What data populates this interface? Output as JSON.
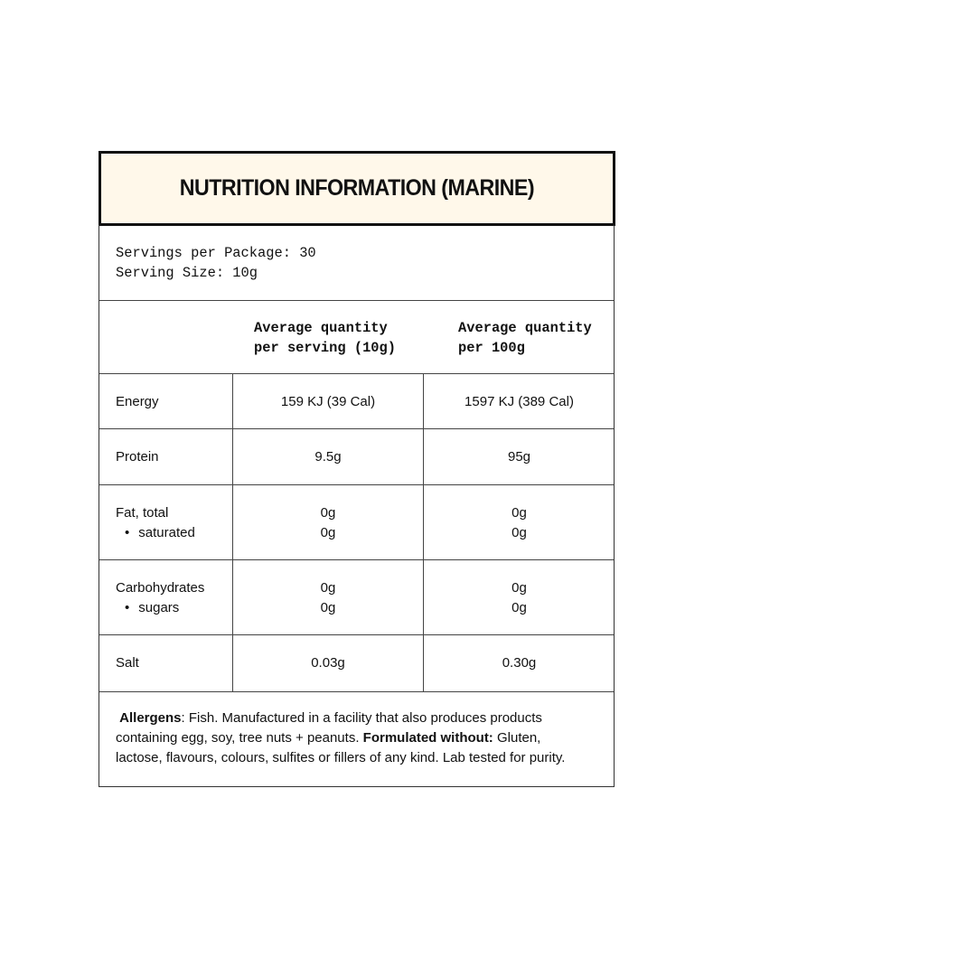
{
  "title": "NUTRITION INFORMATION (MARINE)",
  "servings": {
    "per_package": "Servings per Package: 30",
    "size": "Serving Size: 10g"
  },
  "columns": [
    {
      "line1": "Average quantity",
      "line2": "per serving (10g)"
    },
    {
      "line1": "Average quantity",
      "line2": "per 100g"
    }
  ],
  "rows": [
    {
      "name": "Energy",
      "per_serving": [
        "159 KJ (39 Cal)"
      ],
      "per_100g": [
        "1597 KJ (389 Cal)"
      ]
    },
    {
      "name": "Protein",
      "per_serving": [
        "9.5g"
      ],
      "per_100g": [
        "95g"
      ]
    },
    {
      "name": "Fat, total",
      "sub": "saturated",
      "per_serving": [
        "0g",
        "0g"
      ],
      "per_100g": [
        "0g",
        "0g"
      ]
    },
    {
      "name": "Carbohydrates",
      "sub": "sugars",
      "per_serving": [
        "0g",
        "0g"
      ],
      "per_100g": [
        "0g",
        "0g"
      ]
    },
    {
      "name": "Salt",
      "per_serving": [
        "0.03g"
      ],
      "per_100g": [
        "0.30g"
      ]
    }
  ],
  "footer": {
    "allergens_label": "Allergens",
    "allergens_text": ": Fish. Manufactured in a facility that also produces products containing egg, soy, tree nuts + peanuts. ",
    "formulated_label": "Formulated without:",
    "formulated_text": " Gluten, lactose, flavours, colours, sulfites or fillers of any kind. Lab tested for purity."
  },
  "colors": {
    "header_bg": "#fff8ea",
    "border": "#111111"
  }
}
